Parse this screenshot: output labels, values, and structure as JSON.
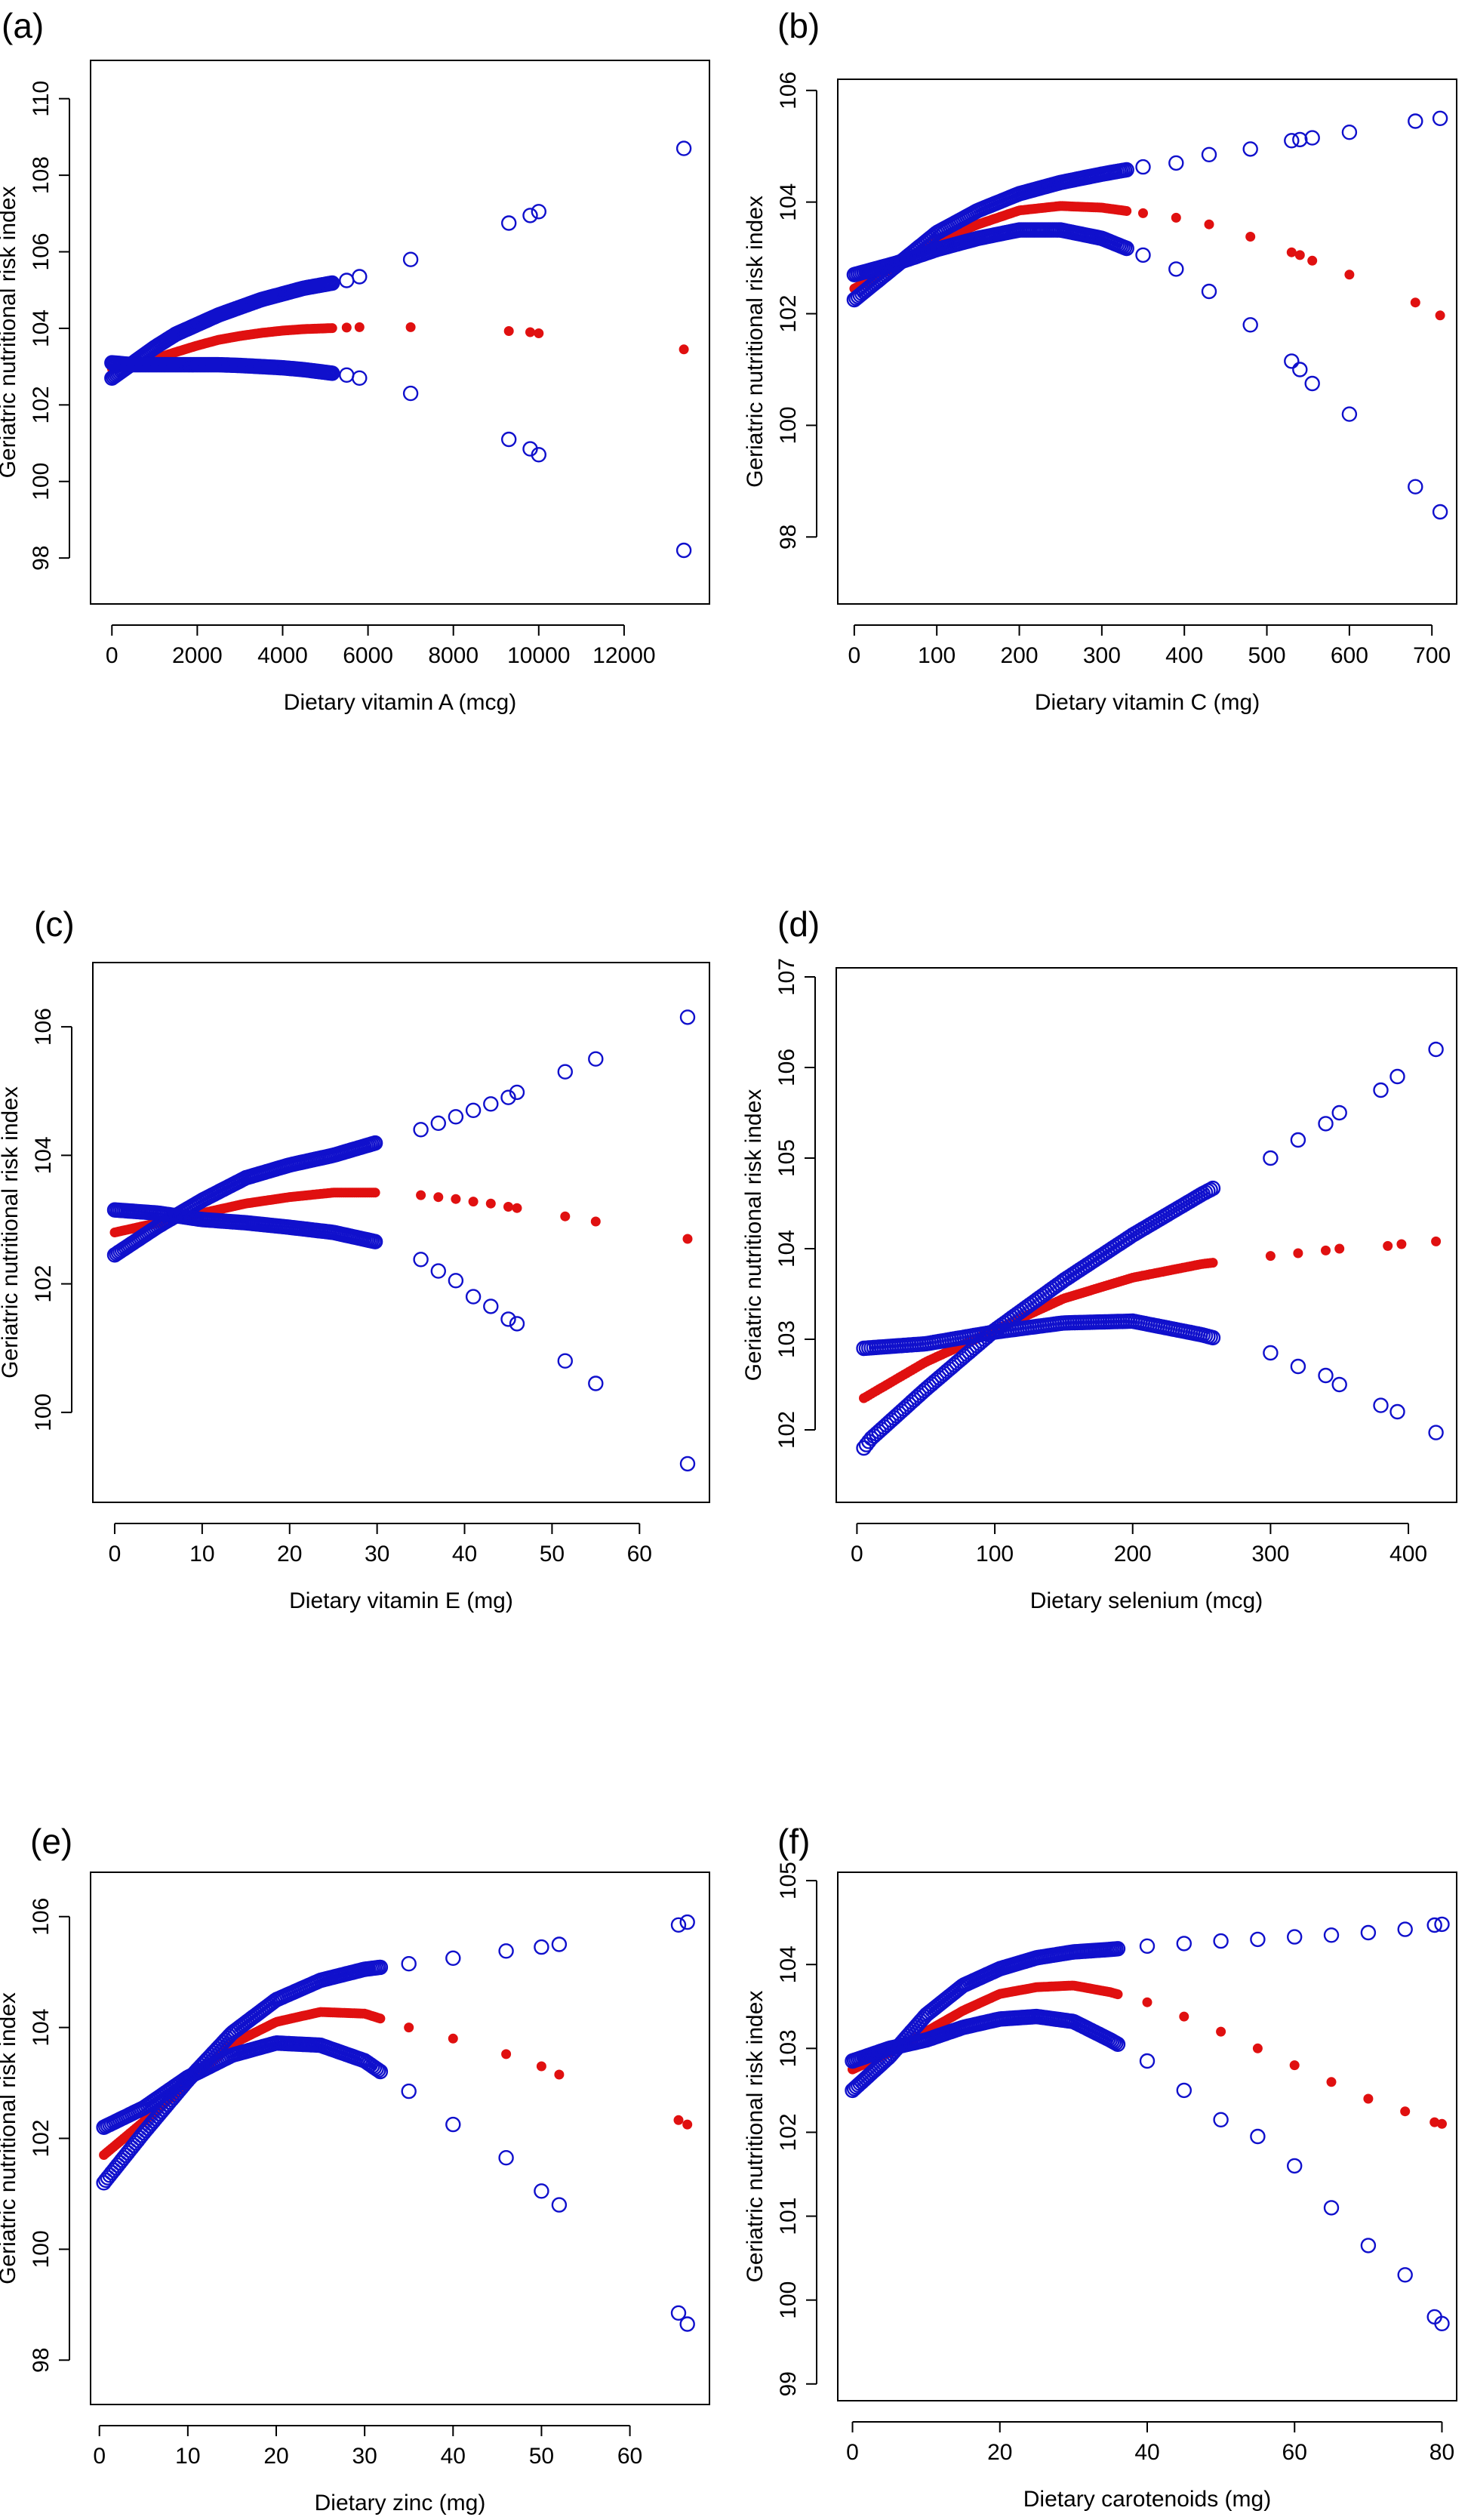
{
  "figure": {
    "colors": {
      "estimate": "#e01010",
      "confidence_band": "#1010cc",
      "frame": "#000000"
    }
  },
  "chart_data": [
    {
      "panel": "(a)",
      "type": "scatter",
      "xlabel": "Dietary vitamin A (mcg)",
      "ylabel": "Geriatric nutritional risk index",
      "xlim": [
        -500,
        14000
      ],
      "ylim": [
        96.8,
        111.0
      ],
      "xticks": [
        0,
        2000,
        4000,
        6000,
        8000,
        10000,
        12000
      ],
      "yticks": [
        98,
        100,
        102,
        104,
        106,
        108,
        110
      ],
      "dense_max": 5200,
      "series": [
        {
          "name": "estimate",
          "x": [
            0,
            500,
            1000,
            1500,
            2000,
            2500,
            3000,
            3500,
            4000,
            4500,
            5000,
            5500,
            5800,
            7000,
            9300,
            9800,
            10000,
            13400
          ],
          "y": [
            102.95,
            103.05,
            103.2,
            103.38,
            103.55,
            103.7,
            103.8,
            103.88,
            103.94,
            103.98,
            104.0,
            104.02,
            104.03,
            104.03,
            103.93,
            103.9,
            103.87,
            103.45
          ]
        },
        {
          "name": "upper 95% CI",
          "x": [
            0,
            500,
            1000,
            1500,
            2000,
            2500,
            3000,
            3500,
            4000,
            4500,
            5000,
            5500,
            5800,
            7000,
            9300,
            9800,
            10000,
            13400
          ],
          "y": [
            102.7,
            103.1,
            103.5,
            103.85,
            104.1,
            104.35,
            104.55,
            104.75,
            104.9,
            105.05,
            105.15,
            105.25,
            105.35,
            105.8,
            106.75,
            106.95,
            107.05,
            108.7
          ]
        },
        {
          "name": "lower 95% CI",
          "x": [
            0,
            500,
            1000,
            1500,
            2000,
            2500,
            3000,
            3500,
            4000,
            4500,
            5000,
            5500,
            5800,
            7000,
            9300,
            9800,
            10000,
            13400
          ],
          "y": [
            103.1,
            103.05,
            103.05,
            103.05,
            103.05,
            103.05,
            103.03,
            103.0,
            102.97,
            102.92,
            102.85,
            102.78,
            102.7,
            102.3,
            101.1,
            100.85,
            100.7,
            98.2
          ]
        }
      ]
    },
    {
      "panel": "(b)",
      "type": "scatter",
      "xlabel": "Dietary vitamin C (mg)",
      "ylabel": "Geriatric nutritional risk index",
      "xlim": [
        -20,
        730
      ],
      "ylim": [
        96.8,
        106.2
      ],
      "xticks": [
        0,
        100,
        200,
        300,
        400,
        500,
        600,
        700
      ],
      "yticks": [
        98,
        100,
        102,
        104,
        106
      ],
      "dense_max": 330,
      "series": [
        {
          "name": "estimate",
          "x": [
            0,
            50,
            100,
            150,
            200,
            250,
            300,
            350,
            390,
            430,
            480,
            530,
            540,
            555,
            600,
            680,
            710
          ],
          "y": [
            102.45,
            102.85,
            103.3,
            103.6,
            103.85,
            103.93,
            103.9,
            103.8,
            103.72,
            103.6,
            103.38,
            103.1,
            103.05,
            102.95,
            102.7,
            102.2,
            101.97
          ]
        },
        {
          "name": "upper 95% CI",
          "x": [
            0,
            50,
            100,
            150,
            200,
            250,
            300,
            350,
            390,
            430,
            480,
            530,
            540,
            555,
            600,
            680,
            710
          ],
          "y": [
            102.25,
            102.85,
            103.45,
            103.85,
            104.15,
            104.35,
            104.5,
            104.63,
            104.7,
            104.85,
            104.95,
            105.1,
            105.12,
            105.15,
            105.25,
            105.45,
            105.5
          ]
        },
        {
          "name": "lower 95% CI",
          "x": [
            0,
            50,
            100,
            150,
            200,
            250,
            300,
            350,
            390,
            430,
            480,
            530,
            540,
            555,
            600,
            680,
            710
          ],
          "y": [
            102.7,
            102.9,
            103.15,
            103.35,
            103.5,
            103.5,
            103.35,
            103.05,
            102.8,
            102.4,
            101.8,
            101.15,
            101.0,
            100.75,
            100.2,
            98.9,
            98.45
          ]
        }
      ]
    },
    {
      "panel": "(c)",
      "type": "scatter",
      "xlabel": "Dietary vitamin E (mg)",
      "ylabel": "Geriatric nutritional risk index",
      "xlim": [
        -2.5,
        68
      ],
      "ylim": [
        98.6,
        107.0
      ],
      "xticks": [
        0,
        10,
        20,
        30,
        40,
        50,
        60
      ],
      "yticks": [
        100,
        102,
        104,
        106
      ],
      "dense_max": 30,
      "series": [
        {
          "name": "estimate",
          "x": [
            0,
            5,
            10,
            15,
            20,
            25,
            30,
            35,
            37,
            39,
            41,
            43,
            45,
            46,
            51.5,
            55,
            65.5
          ],
          "y": [
            102.8,
            102.95,
            103.1,
            103.25,
            103.35,
            103.42,
            103.42,
            103.38,
            103.35,
            103.32,
            103.28,
            103.25,
            103.2,
            103.18,
            103.05,
            102.97,
            102.7
          ]
        },
        {
          "name": "upper 95% CI",
          "x": [
            0,
            5,
            10,
            15,
            20,
            25,
            30,
            35,
            37,
            39,
            41,
            43,
            45,
            46,
            51.5,
            55,
            65.5
          ],
          "y": [
            102.45,
            102.9,
            103.3,
            103.65,
            103.85,
            104.0,
            104.2,
            104.4,
            104.5,
            104.6,
            104.7,
            104.8,
            104.9,
            104.98,
            105.3,
            105.5,
            106.15
          ]
        },
        {
          "name": "lower 95% CI",
          "x": [
            0,
            5,
            10,
            15,
            20,
            25,
            30,
            35,
            37,
            39,
            41,
            43,
            45,
            46,
            51.5,
            55,
            65.5
          ],
          "y": [
            103.15,
            103.1,
            103.0,
            102.95,
            102.88,
            102.8,
            102.65,
            102.38,
            102.2,
            102.05,
            101.8,
            101.65,
            101.45,
            101.38,
            100.8,
            100.45,
            99.2
          ]
        }
      ]
    },
    {
      "panel": "(d)",
      "type": "scatter",
      "xlabel": "Dietary selenium (mcg)",
      "ylabel": "Geriatric nutritional risk index",
      "xlim": [
        -15,
        435
      ],
      "ylim": [
        101.2,
        107.1
      ],
      "xticks": [
        0,
        100,
        200,
        300,
        400
      ],
      "yticks": [
        102,
        103,
        104,
        105,
        106,
        107
      ],
      "dense_max": 260,
      "series": [
        {
          "name": "estimate",
          "x": [
            5,
            50,
            100,
            150,
            200,
            250,
            300,
            320,
            340,
            350,
            385,
            395,
            420
          ],
          "y": [
            102.35,
            102.75,
            103.1,
            103.45,
            103.68,
            103.83,
            103.92,
            103.95,
            103.98,
            104.0,
            104.03,
            104.05,
            104.08
          ]
        },
        {
          "name": "upper 95% CI",
          "x": [
            5,
            10,
            50,
            100,
            150,
            200,
            250,
            300,
            320,
            340,
            350,
            380,
            392,
            420
          ],
          "y": [
            101.8,
            101.9,
            102.45,
            103.1,
            103.65,
            104.15,
            104.6,
            105.0,
            105.2,
            105.38,
            105.5,
            105.75,
            105.9,
            106.2
          ]
        },
        {
          "name": "lower 95% CI",
          "x": [
            5,
            50,
            100,
            150,
            200,
            250,
            300,
            320,
            340,
            350,
            380,
            392,
            420
          ],
          "y": [
            102.9,
            102.95,
            103.08,
            103.18,
            103.2,
            103.05,
            102.85,
            102.7,
            102.6,
            102.5,
            102.27,
            102.2,
            101.97
          ]
        }
      ]
    },
    {
      "panel": "(e)",
      "type": "scatter",
      "xlabel": "Dietary zinc (mg)",
      "ylabel": "Geriatric nutritional risk index",
      "xlim": [
        -1,
        69
      ],
      "ylim": [
        97.2,
        106.8
      ],
      "xticks": [
        0,
        10,
        20,
        30,
        40,
        50,
        60
      ],
      "yticks": [
        98,
        100,
        102,
        104,
        106
      ],
      "dense_max": 32,
      "series": [
        {
          "name": "estimate",
          "x": [
            0.5,
            5,
            10,
            15,
            20,
            25,
            30,
            35,
            40,
            46,
            50,
            52,
            65.5,
            66.5
          ],
          "y": [
            101.7,
            102.3,
            103.0,
            103.7,
            104.1,
            104.28,
            104.25,
            104.0,
            103.8,
            103.52,
            103.3,
            103.15,
            102.33,
            102.25
          ]
        },
        {
          "name": "upper 95% CI",
          "x": [
            0.5,
            5,
            10,
            15,
            20,
            25,
            30,
            35,
            40,
            46,
            50,
            52,
            65.5,
            66.5
          ],
          "y": [
            101.2,
            102.1,
            103.05,
            103.9,
            104.5,
            104.85,
            105.05,
            105.15,
            105.25,
            105.38,
            105.45,
            105.5,
            105.85,
            105.9
          ]
        },
        {
          "name": "lower 95% CI",
          "x": [
            0.5,
            5,
            10,
            15,
            20,
            25,
            30,
            35,
            40,
            46,
            50,
            52,
            65.5,
            66.5
          ],
          "y": [
            102.2,
            102.55,
            103.1,
            103.5,
            103.72,
            103.68,
            103.4,
            102.85,
            102.25,
            101.65,
            101.05,
            100.8,
            98.85,
            98.65
          ]
        }
      ]
    },
    {
      "panel": "(f)",
      "type": "scatter",
      "xlabel": "Dietary carotenoids (mg)",
      "ylabel": "Geriatric nutritional risk index",
      "xlim": [
        -2,
        82
      ],
      "ylim": [
        98.8,
        105.1
      ],
      "xticks": [
        0,
        20,
        40,
        60,
        80
      ],
      "yticks": [
        99,
        100,
        101,
        102,
        103,
        104,
        105
      ],
      "dense_max": 36,
      "series": [
        {
          "name": "estimate",
          "x": [
            0,
            5,
            10,
            15,
            20,
            25,
            30,
            35,
            40,
            45,
            50,
            55,
            60,
            65,
            70,
            75,
            79,
            80
          ],
          "y": [
            102.75,
            102.95,
            103.2,
            103.45,
            103.65,
            103.73,
            103.75,
            103.67,
            103.55,
            103.38,
            103.2,
            103.0,
            102.8,
            102.6,
            102.4,
            102.25,
            102.12,
            102.1
          ]
        },
        {
          "name": "upper 95% CI",
          "x": [
            0,
            5,
            10,
            15,
            20,
            25,
            30,
            35,
            40,
            45,
            50,
            55,
            60,
            65,
            70,
            75,
            79,
            80
          ],
          "y": [
            102.5,
            102.9,
            103.4,
            103.75,
            103.95,
            104.08,
            104.15,
            104.18,
            104.22,
            104.25,
            104.28,
            104.3,
            104.33,
            104.35,
            104.38,
            104.42,
            104.47,
            104.48
          ]
        },
        {
          "name": "lower 95% CI",
          "x": [
            0,
            5,
            10,
            15,
            20,
            25,
            30,
            35,
            40,
            45,
            50,
            55,
            60,
            65,
            70,
            75,
            79,
            80
          ],
          "y": [
            102.85,
            103.0,
            103.1,
            103.25,
            103.35,
            103.38,
            103.32,
            103.1,
            102.85,
            102.5,
            102.15,
            101.95,
            101.6,
            101.1,
            100.65,
            100.3,
            99.8,
            99.72
          ]
        }
      ]
    }
  ]
}
